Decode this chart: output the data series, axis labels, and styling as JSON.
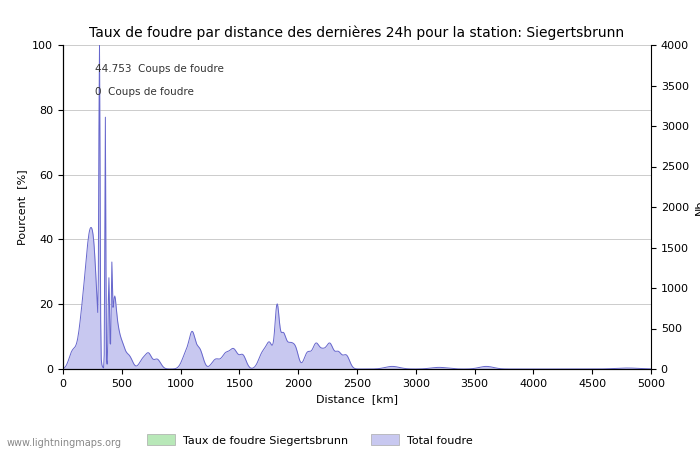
{
  "title": "Taux de foudre par distance des dernières 24h pour la station: Siegertsbrunn",
  "xlabel": "Distance  [km]",
  "ylabel_left": "Pourcent  [%]",
  "ylabel_right": "Nb",
  "annotation_line1": "44.753  Coups de foudre",
  "annotation_line2": "0  Coups de foudre",
  "xlim": [
    0,
    5000
  ],
  "ylim_left": [
    0,
    100
  ],
  "ylim_right": [
    0,
    4000
  ],
  "yticks_left": [
    0,
    20,
    40,
    60,
    80,
    100
  ],
  "yticks_right": [
    0,
    500,
    1000,
    1500,
    2000,
    2500,
    3000,
    3500,
    4000
  ],
  "xticks": [
    0,
    500,
    1000,
    1500,
    2000,
    2500,
    3000,
    3500,
    4000,
    4500,
    5000
  ],
  "grid_color": "#cccccc",
  "fill_color_total": "#c8c8f0",
  "fill_color_station": "#b8e8b8",
  "line_color": "#6666cc",
  "background_color": "#ffffff",
  "legend_label_station": "Taux de foudre Siegertsbrunn",
  "legend_label_total": "Total foudre",
  "watermark": "www.lightningmaps.org",
  "title_fontsize": 10,
  "label_fontsize": 8,
  "tick_fontsize": 8
}
